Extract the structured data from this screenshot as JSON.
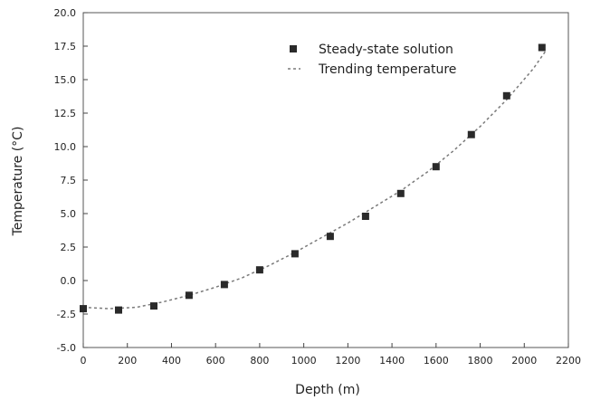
{
  "chart_data": {
    "type": "scatter",
    "xlabel": "Depth (m)",
    "ylabel": "Temperature (°C)",
    "xlim": [
      0,
      2200
    ],
    "ylim": [
      -5,
      20
    ],
    "x_ticks": [
      0,
      200,
      400,
      600,
      800,
      1000,
      1200,
      1400,
      1600,
      1800,
      2000,
      2200
    ],
    "y_ticks": [
      -5,
      -2.5,
      0,
      2.5,
      5,
      7.5,
      10,
      12.5,
      15,
      17.5,
      20
    ],
    "x_tick_labels": [
      "0",
      "200",
      "400",
      "600",
      "800",
      "1000",
      "1200",
      "1400",
      "1600",
      "1800",
      "2000",
      "2200"
    ],
    "y_tick_labels": [
      "-5.0",
      "-2.5",
      "0.0",
      "2.5",
      "5.0",
      "7.5",
      "10.0",
      "12.5",
      "15.0",
      "17.5",
      "20.0"
    ],
    "grid": true,
    "legend_position": "top-right",
    "series": [
      {
        "name": "Steady-state solution",
        "style": "markers",
        "color": "#2a2a2a",
        "x": [
          0,
          160,
          320,
          480,
          640,
          800,
          960,
          1120,
          1280,
          1440,
          1600,
          1760,
          1920,
          2080
        ],
        "y": [
          -2.1,
          -2.2,
          -1.9,
          -1.1,
          -0.3,
          0.8,
          2.0,
          3.3,
          4.8,
          6.5,
          8.5,
          10.9,
          13.8,
          17.4
        ]
      },
      {
        "name": "Trending temperature",
        "style": "dashed",
        "color": "#7a7a7a",
        "x": [
          0,
          120,
          240,
          360,
          480,
          600,
          720,
          840,
          960,
          1080,
          1200,
          1320,
          1440,
          1560,
          1680,
          1800,
          1920,
          2040,
          2100
        ],
        "y": [
          -2.0,
          -2.1,
          -2.0,
          -1.6,
          -1.1,
          -0.5,
          0.2,
          1.1,
          2.1,
          3.2,
          4.3,
          5.5,
          6.7,
          8.1,
          9.7,
          11.5,
          13.5,
          15.8,
          17.2
        ]
      }
    ]
  }
}
